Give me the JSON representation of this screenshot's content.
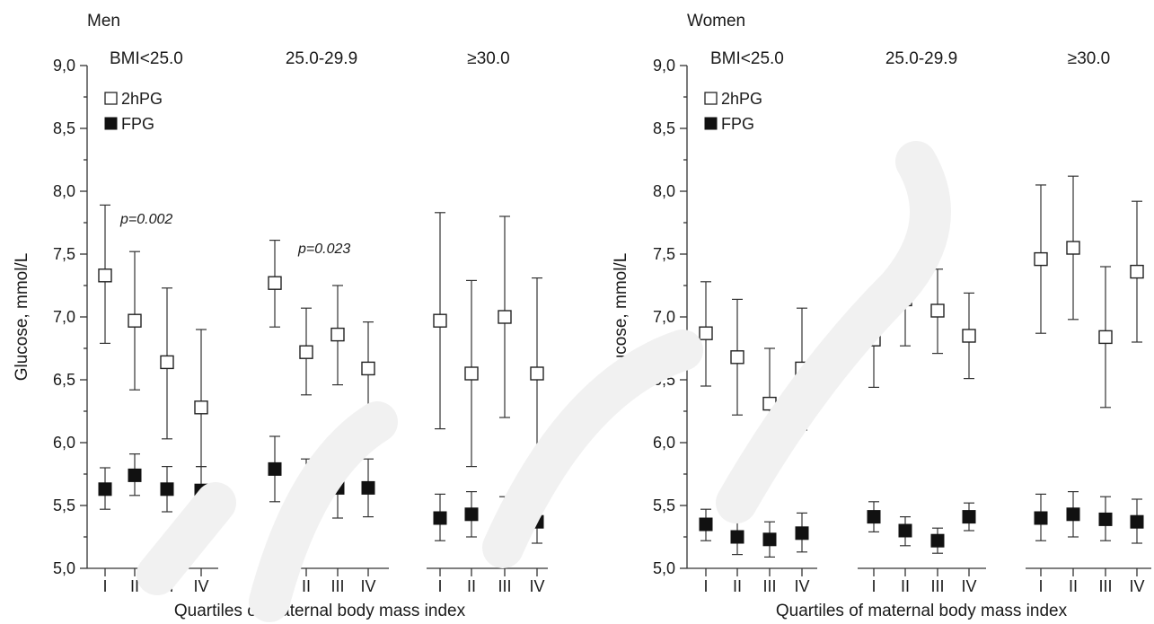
{
  "chart_data": [
    {
      "type": "scatter",
      "title": "Men",
      "ylabel": "Glucose, mmol/L",
      "xlabel": "Quartiles of maternal body mass index",
      "ylim": [
        5.0,
        9.0
      ],
      "yticks": [
        "5,0",
        "5,5",
        "6,0",
        "6,5",
        "7,0",
        "7,5",
        "8,0",
        "8,5",
        "9,0"
      ],
      "legend": {
        "placement": "top-left",
        "entries": [
          {
            "label": "2hPG",
            "marker": "open-square"
          },
          {
            "label": "FPG",
            "marker": "filled-square"
          }
        ]
      },
      "groups": [
        {
          "label": "BMI<25.0",
          "categories": [
            "I",
            "II",
            "III",
            "IV"
          ],
          "series": [
            {
              "name": "2hPG",
              "values": [
                7.33,
                6.97,
                6.64,
                6.28
              ],
              "lower": [
                6.79,
                6.42,
                6.03,
                5.81
              ],
              "upper": [
                7.89,
                7.52,
                7.23,
                6.9
              ]
            },
            {
              "name": "FPG",
              "values": [
                5.63,
                5.74,
                5.63,
                5.62
              ],
              "lower": [
                5.47,
                5.58,
                5.45,
                5.44
              ],
              "upper": [
                5.8,
                5.91,
                5.81,
                5.81
              ]
            }
          ],
          "annotation": "p=0.002"
        },
        {
          "label": "25.0-29.9",
          "categories": [
            "I",
            "II",
            "III",
            "IV"
          ],
          "series": [
            {
              "name": "2hPG",
              "values": [
                7.27,
                6.72,
                6.86,
                6.59
              ],
              "lower": [
                6.92,
                6.38,
                6.46,
                6.22
              ],
              "upper": [
                7.61,
                7.07,
                7.25,
                6.96
              ]
            },
            {
              "name": "FPG",
              "values": [
                5.79,
                5.65,
                5.64,
                5.64
              ],
              "lower": [
                5.53,
                5.43,
                5.4,
                5.41
              ],
              "upper": [
                6.05,
                5.87,
                5.88,
                5.87
              ]
            }
          ],
          "annotation": "p=0.023"
        },
        {
          "label": "≥30.0",
          "categories": [
            "I",
            "II",
            "III",
            "IV"
          ],
          "series": [
            {
              "name": "2hPG",
              "values": [
                6.97,
                6.55,
                7.0,
                6.55
              ],
              "lower": [
                6.11,
                5.81,
                6.2,
                5.8
              ],
              "upper": [
                7.83,
                7.29,
                7.8,
                7.31
              ]
            },
            {
              "name": "FPG",
              "values": [
                5.4,
                5.43,
                5.39,
                5.37
              ],
              "lower": [
                5.22,
                5.25,
                5.22,
                5.2
              ],
              "upper": [
                5.59,
                5.61,
                5.57,
                5.55
              ]
            }
          ],
          "annotation": ""
        }
      ]
    },
    {
      "type": "scatter",
      "title": "Women",
      "ylabel": "Glucose, mmol/L",
      "xlabel": "Quartiles of maternal body mass index",
      "ylim": [
        5.0,
        9.0
      ],
      "yticks": [
        "5,0",
        "5,5",
        "6,0",
        "6,5",
        "7,0",
        "7,5",
        "8,0",
        "8,5",
        "9,0"
      ],
      "legend": {
        "placement": "top-left",
        "entries": [
          {
            "label": "2hPG",
            "marker": "open-square"
          },
          {
            "label": "FPG",
            "marker": "filled-square"
          }
        ]
      },
      "groups": [
        {
          "label": "BMI<25.0",
          "categories": [
            "I",
            "II",
            "III",
            "IV"
          ],
          "series": [
            {
              "name": "2hPG",
              "values": [
                6.87,
                6.68,
                6.31,
                6.59
              ],
              "lower": [
                6.45,
                6.22,
                5.87,
                6.1
              ],
              "upper": [
                7.28,
                7.14,
                6.75,
                7.07
              ]
            },
            {
              "name": "FPG",
              "values": [
                5.35,
                5.25,
                5.23,
                5.28
              ],
              "lower": [
                5.22,
                5.11,
                5.09,
                5.13
              ],
              "upper": [
                5.47,
                5.39,
                5.37,
                5.44
              ]
            }
          ],
          "annotation": ""
        },
        {
          "label": "25.0-29.9",
          "categories": [
            "I",
            "II",
            "III",
            "IV"
          ],
          "series": [
            {
              "name": "2hPG",
              "values": [
                6.82,
                7.14,
                7.05,
                6.85
              ],
              "lower": [
                6.44,
                6.77,
                6.71,
                6.51
              ],
              "upper": [
                7.2,
                7.5,
                7.38,
                7.19
              ]
            },
            {
              "name": "FPG",
              "values": [
                5.41,
                5.3,
                5.22,
                5.41
              ],
              "lower": [
                5.29,
                5.18,
                5.12,
                5.3
              ],
              "upper": [
                5.53,
                5.41,
                5.32,
                5.52
              ]
            }
          ],
          "annotation": ""
        },
        {
          "label": "≥30.0",
          "categories": [
            "I",
            "II",
            "III",
            "IV"
          ],
          "series": [
            {
              "name": "2hPG",
              "values": [
                7.46,
                7.55,
                6.84,
                7.36
              ],
              "lower": [
                6.87,
                6.98,
                6.28,
                6.8
              ],
              "upper": [
                8.05,
                8.12,
                7.4,
                7.92
              ]
            },
            {
              "name": "FPG",
              "values": [
                5.4,
                5.43,
                5.39,
                5.37
              ],
              "lower": [
                5.22,
                5.25,
                5.22,
                5.2
              ],
              "upper": [
                5.59,
                5.61,
                5.57,
                5.55
              ]
            }
          ],
          "annotation": ""
        }
      ]
    }
  ]
}
